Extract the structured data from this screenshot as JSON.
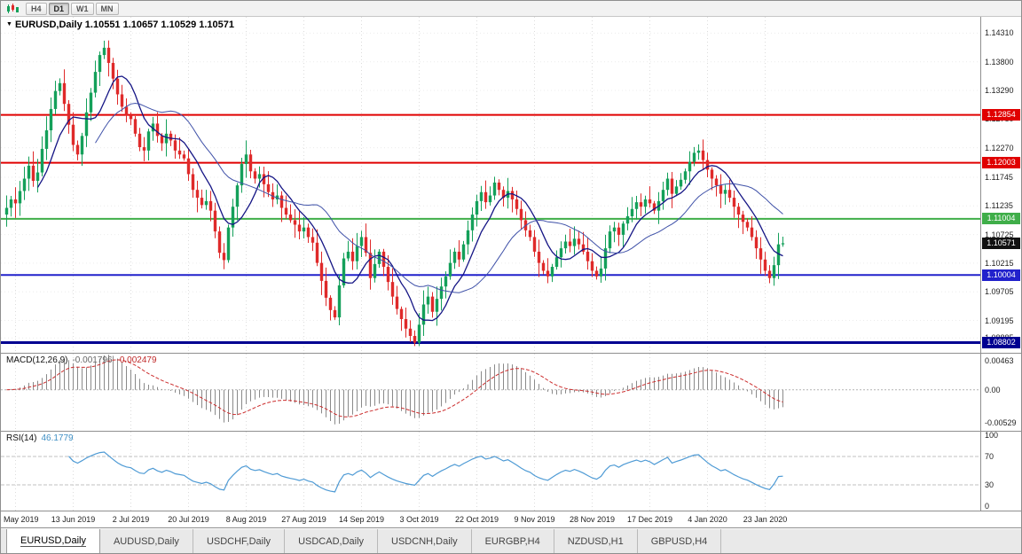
{
  "toolbar": {
    "timeframes": [
      {
        "label": "H4",
        "active": false
      },
      {
        "label": "D1",
        "active": true
      },
      {
        "label": "W1",
        "active": false
      },
      {
        "label": "MN",
        "active": false
      }
    ]
  },
  "icons": {
    "dropdown": "▼"
  },
  "chart": {
    "title": "EURUSD,Daily 1.10551 1.10657 1.10529 1.10571"
  },
  "colors": {
    "bull": "#14a05a",
    "bear": "#df2a2a",
    "ma_fast": "#151585",
    "ma_slow": "#3f51a8",
    "macd_hist": "#8a8a8a",
    "macd_signal": "#cc2e2e",
    "rsi": "#4f9bd5",
    "line_red": "#e00000",
    "line_green": "#3fae49",
    "line_blue": "#2121cc",
    "line_navy": "#000091",
    "badge_black": "#111111"
  },
  "chart_data": {
    "type": "candlestick",
    "symbol": "EURUSD",
    "timeframe": "Daily",
    "ohlc_display": {
      "open": "1.10551",
      "high": "1.10657",
      "low": "1.10529",
      "close": "1.10571"
    },
    "y_range": [
      1.0862,
      1.146
    ],
    "y_axis_ticks": [
      "1.14310",
      "1.13800",
      "1.13290",
      "1.12780",
      "1.12270",
      "1.11745",
      "1.11235",
      "1.10725",
      "1.10215",
      "1.09705",
      "1.09195",
      "1.08885"
    ],
    "current_price": {
      "value": 1.10571,
      "label": "1.10571"
    },
    "h_lines": [
      {
        "price": 1.12854,
        "label": "1.12854",
        "color": "line_red",
        "width": 2
      },
      {
        "price": 1.12003,
        "label": "1.12003",
        "color": "line_red",
        "width": 2
      },
      {
        "price": 1.11004,
        "label": "1.11004",
        "color": "line_green",
        "width": 2
      },
      {
        "price": 1.10004,
        "label": "1.10004",
        "color": "line_blue",
        "width": 2
      },
      {
        "price": 1.08802,
        "label": "1.08802",
        "color": "line_navy",
        "width": 3
      }
    ],
    "x_ticks": [
      {
        "i": 2,
        "label": "25 May 2019"
      },
      {
        "i": 15,
        "label": "13 Jun 2019"
      },
      {
        "i": 28,
        "label": "2 Jul 2019"
      },
      {
        "i": 41,
        "label": "20 Jul 2019"
      },
      {
        "i": 54,
        "label": "8 Aug 2019"
      },
      {
        "i": 67,
        "label": "27 Aug 2019"
      },
      {
        "i": 80,
        "label": "14 Sep 2019"
      },
      {
        "i": 93,
        "label": "3 Oct 2019"
      },
      {
        "i": 106,
        "label": "22 Oct 2019"
      },
      {
        "i": 119,
        "label": "9 Nov 2019"
      },
      {
        "i": 132,
        "label": "28 Nov 2019"
      },
      {
        "i": 145,
        "label": "17 Dec 2019"
      },
      {
        "i": 158,
        "label": "4 Jan 2020"
      },
      {
        "i": 171,
        "label": "23 Jan 2020"
      }
    ],
    "closes": [
      1.112,
      1.1135,
      1.1128,
      1.115,
      1.1172,
      1.1195,
      1.1168,
      1.1183,
      1.1225,
      1.1258,
      1.1296,
      1.1328,
      1.1342,
      1.1305,
      1.1268,
      1.1232,
      1.1215,
      1.1248,
      1.129,
      1.1325,
      1.1362,
      1.1392,
      1.1405,
      1.1378,
      1.135,
      1.1322,
      1.13,
      1.1285,
      1.1278,
      1.1252,
      1.1228,
      1.1222,
      1.1256,
      1.127,
      1.1248,
      1.1235,
      1.1252,
      1.124,
      1.1222,
      1.1215,
      1.1208,
      1.118,
      1.1152,
      1.1138,
      1.1125,
      1.1132,
      1.1115,
      1.1078,
      1.104,
      1.1027,
      1.1085,
      1.1122,
      1.116,
      1.1198,
      1.1215,
      1.1185,
      1.1172,
      1.118,
      1.1162,
      1.1148,
      1.1135,
      1.1142,
      1.112,
      1.1108,
      1.1098,
      1.109,
      1.1078,
      1.1085,
      1.1068,
      1.1058,
      1.1022,
      1.099,
      1.096,
      1.0938,
      1.0925,
      1.0982,
      1.103,
      1.1042,
      1.1025,
      1.1052,
      1.1068,
      1.104,
      1.0995,
      1.102,
      1.1042,
      1.1015,
      1.0988,
      1.0962,
      1.094,
      1.0922,
      1.0905,
      1.0892,
      1.088,
      1.0912,
      1.0948,
      1.0962,
      1.0935,
      1.0958,
      1.098,
      1.0998,
      1.1022,
      1.1042,
      1.1028,
      1.1055,
      1.108,
      1.1108,
      1.1132,
      1.1148,
      1.113,
      1.1142,
      1.1165,
      1.1152,
      1.1138,
      1.115,
      1.1135,
      1.1118,
      1.1098,
      1.108,
      1.1068,
      1.1042,
      1.1022,
      1.1008,
      1.0998,
      1.1015,
      1.1032,
      1.1048,
      1.106,
      1.1052,
      1.1065,
      1.1055,
      1.1042,
      1.1025,
      1.1008,
      1.0998,
      1.1012,
      1.1048,
      1.1078,
      1.1085,
      1.1072,
      1.1092,
      1.1105,
      1.1118,
      1.113,
      1.1122,
      1.1135,
      1.1128,
      1.1115,
      1.1132,
      1.1152,
      1.1172,
      1.1145,
      1.1158,
      1.117,
      1.1185,
      1.1202,
      1.1218,
      1.1222,
      1.1205,
      1.1188,
      1.1172,
      1.116,
      1.1145,
      1.1152,
      1.1138,
      1.1122,
      1.1108,
      1.1095,
      1.1085,
      1.1068,
      1.1048,
      1.1028,
      1.1008,
      1.0995,
      1.1018,
      1.1055,
      1.1057
    ],
    "indicators": {
      "macd": {
        "name": "MACD(12,26,9)",
        "value": "-0.001796",
        "signal": "-0.002479",
        "params": [
          12,
          26,
          9
        ],
        "axis": [
          "0.00463",
          "0.00",
          "-0.00529"
        ],
        "y_range": [
          -0.0066,
          0.0058
        ]
      },
      "rsi": {
        "name": "RSI(14)",
        "value": "46.1779",
        "period": 14,
        "axis": [
          "100",
          "70",
          "30",
          "0"
        ],
        "levels": [
          70,
          30
        ]
      }
    }
  },
  "tabs": [
    {
      "label": "EURUSD,Daily",
      "active": true
    },
    {
      "label": "AUDUSD,Daily",
      "active": false
    },
    {
      "label": "USDCHF,Daily",
      "active": false
    },
    {
      "label": "USDCAD,Daily",
      "active": false
    },
    {
      "label": "USDCNH,Daily",
      "active": false
    },
    {
      "label": "EURGBP,H4",
      "active": false
    },
    {
      "label": "NZDUSD,H1",
      "active": false
    },
    {
      "label": "GBPUSD,H4",
      "active": false
    }
  ]
}
